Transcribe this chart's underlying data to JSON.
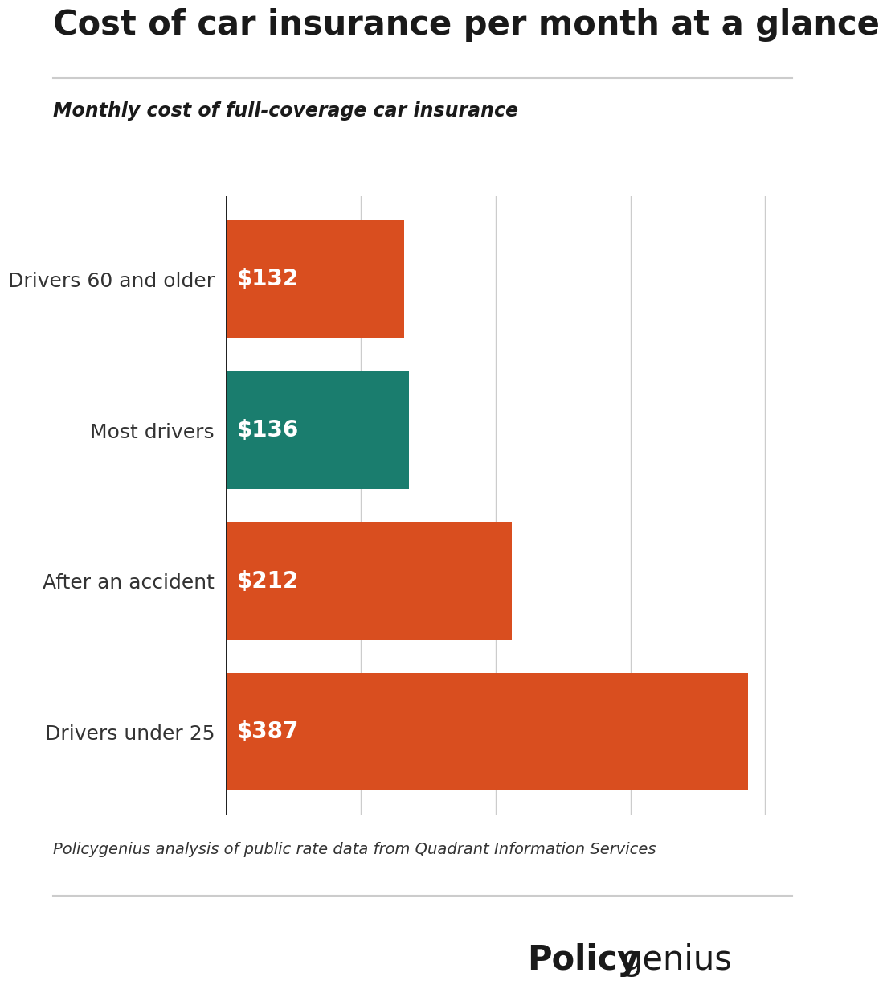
{
  "title": "Cost of car insurance per month at a glance",
  "subtitle": "Monthly cost of full-coverage car insurance",
  "categories": [
    "Drivers under 25",
    "After an accident",
    "Most drivers",
    "Drivers 60 and older"
  ],
  "values": [
    387,
    212,
    136,
    132
  ],
  "labels": [
    "$387",
    "$212",
    "$136",
    "$132"
  ],
  "bar_colors": [
    "#d94e1f",
    "#d94e1f",
    "#1a7d6e",
    "#d94e1f"
  ],
  "background_color": "#ffffff",
  "title_color": "#1a1a1a",
  "subtitle_color": "#1a1a1a",
  "label_color": "#ffffff",
  "category_color": "#333333",
  "footer_text": "Policygenius analysis of public rate data from Quadrant Information Services",
  "footer_color": "#333333",
  "grid_color": "#cccccc",
  "xlim": [
    0,
    420
  ],
  "bar_height": 0.78,
  "logo_bold": "Policy",
  "logo_regular": "genius",
  "logo_color": "#1a1a1a",
  "title_fontsize": 30,
  "subtitle_fontsize": 17,
  "label_fontsize": 20,
  "category_fontsize": 18,
  "footer_fontsize": 14,
  "logo_fontsize": 30
}
